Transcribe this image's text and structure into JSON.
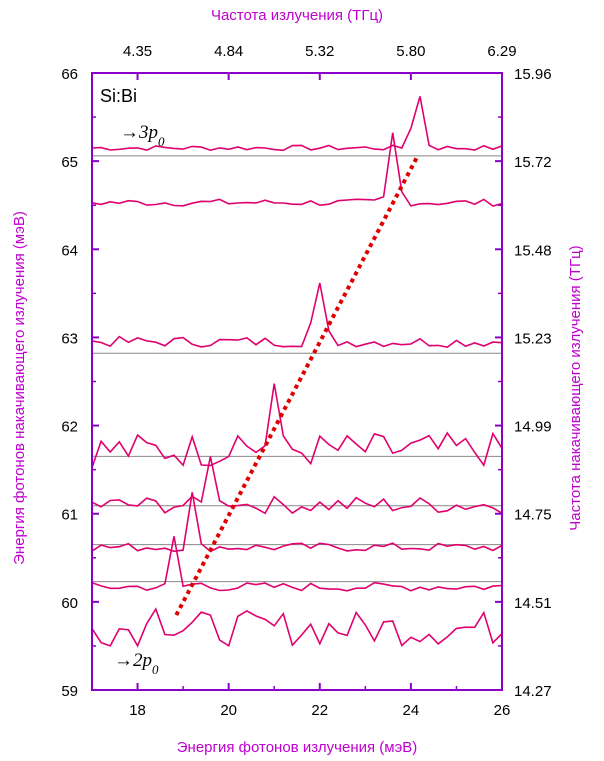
{
  "colors": {
    "axis": "#8a00c8",
    "axis_title": "#c000d0",
    "spectrum": "#e0006e",
    "trend": "#e00000",
    "separator": "#888888"
  },
  "chart_data": {
    "type": "line",
    "title": "",
    "xlabel": "Энергия фотонов излучения (мэВ)",
    "x2label": "Частота излучения (ТГц)",
    "ylabel": "Энергия фотонов накачивающего излучения (мэВ)",
    "y2label": "Частота накачивающего излучения (ТГц)",
    "xlim": [
      17,
      26
    ],
    "ylim": [
      59,
      66
    ],
    "x_ticks": [
      "18",
      "20",
      "22",
      "24",
      "26"
    ],
    "x_tick_values": [
      18,
      20,
      22,
      24,
      26
    ],
    "x2_ticks": [
      "4.35",
      "4.84",
      "5.32",
      "5.80",
      "6.29"
    ],
    "x2_tick_values": [
      18,
      20,
      22,
      24,
      26
    ],
    "y_ticks": [
      "59",
      "60",
      "61",
      "62",
      "63",
      "64",
      "65",
      "66"
    ],
    "y_tick_values": [
      59,
      60,
      61,
      62,
      63,
      64,
      65,
      66
    ],
    "y2_ticks": [
      "14.27",
      "14.51",
      "14.75",
      "14.99",
      "15.23",
      "15.48",
      "15.72",
      "15.96"
    ],
    "y2_tick_values": [
      59,
      60,
      61,
      62,
      63,
      64,
      65,
      66
    ],
    "sample": "Si:Bi",
    "annotations": [
      {
        "text_prefix": "→3",
        "text_p": "p",
        "text_sub": "0",
        "x": 17.7,
        "y": 65.25
      },
      {
        "text_prefix": "→2",
        "text_p": "p",
        "text_sub": "0",
        "x": 17.5,
        "y": 59.35
      }
    ],
    "separators": [
      65.06,
      62.82,
      61.65,
      61.09,
      60.65,
      60.23
    ],
    "trend_line": {
      "x": [
        18.85,
        24.15
      ],
      "y": [
        59.85,
        65.06
      ]
    },
    "series": [
      {
        "baseline": 65.15,
        "amp": 0.65,
        "peak": 24.15,
        "width": 0.15,
        "noise": 0.003
      },
      {
        "baseline": 64.53,
        "amp": 0.8,
        "peak": 23.62,
        "width": 0.13,
        "noise": 0.004
      },
      {
        "baseline": 62.95,
        "amp": 0.65,
        "peak": 21.97,
        "width": 0.16,
        "noise": 0.006
      },
      {
        "baseline": 61.72,
        "amp": 0.95,
        "peak": 20.95,
        "width": 0.1,
        "noise": 0.02,
        "second_peak": 20.2,
        "second_amp": 0.35
      },
      {
        "baseline": 61.1,
        "amp": 0.65,
        "peak": 19.62,
        "width": 0.09,
        "noise": 0.01,
        "second_peak": 20.1,
        "second_amp": 0.18
      },
      {
        "baseline": 60.62,
        "amp": 0.6,
        "peak": 19.2,
        "width": 0.09,
        "noise": 0.005
      },
      {
        "baseline": 60.17,
        "amp": 0.55,
        "peak": 18.8,
        "width": 0.09,
        "noise": 0.005,
        "second_peak": 19.3,
        "second_amp": 0.1
      },
      {
        "baseline": 59.7,
        "amp": 0.45,
        "peak": 18.45,
        "width": 0.12,
        "noise": 0.02
      }
    ]
  }
}
